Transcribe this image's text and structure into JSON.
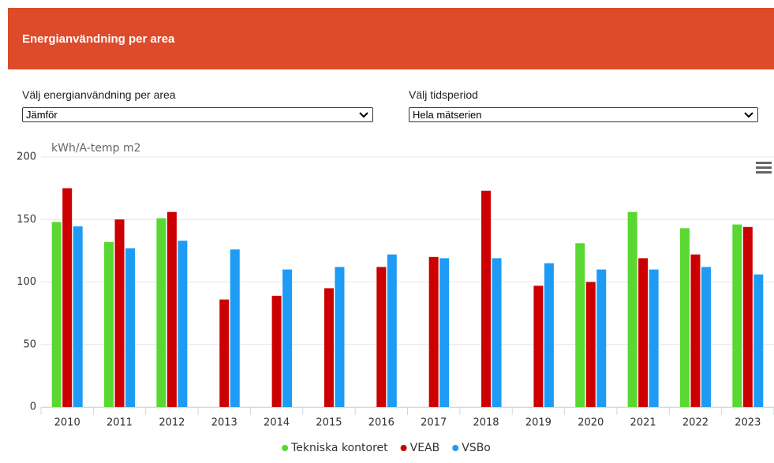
{
  "header": {
    "title": "Energianvändning per area"
  },
  "controls": [
    {
      "label": "Välj energianvändning per area",
      "selected": "Jämför"
    },
    {
      "label": "Välj tidsperiod",
      "selected": "Hela mätserien"
    }
  ],
  "chart_data": {
    "type": "bar",
    "y_axis_label": "kWh/A-temp m2",
    "categories": [
      "2010",
      "2011",
      "2012",
      "2013",
      "2014",
      "2015",
      "2016",
      "2017",
      "2018",
      "2019",
      "2020",
      "2021",
      "2022",
      "2023"
    ],
    "series": [
      {
        "name": "Tekniska kontoret",
        "color": "#5ad832",
        "values": [
          148,
          132,
          151,
          null,
          null,
          null,
          null,
          null,
          null,
          null,
          131,
          156,
          143,
          146
        ]
      },
      {
        "name": "VEAB",
        "color": "#cc0000",
        "values": [
          175,
          150,
          156,
          86,
          89,
          95,
          112,
          120,
          173,
          97,
          100,
          119,
          122,
          144
        ]
      },
      {
        "name": "VSBo",
        "color": "#1e9bf5",
        "values": [
          144.5,
          127,
          133,
          126,
          110,
          112,
          122,
          119,
          119,
          115,
          110,
          110,
          112,
          106
        ]
      }
    ],
    "ylim": [
      0,
      200
    ],
    "yticks": [
      0,
      50,
      100,
      150,
      200
    ],
    "grid": true,
    "legend": "bottom"
  }
}
